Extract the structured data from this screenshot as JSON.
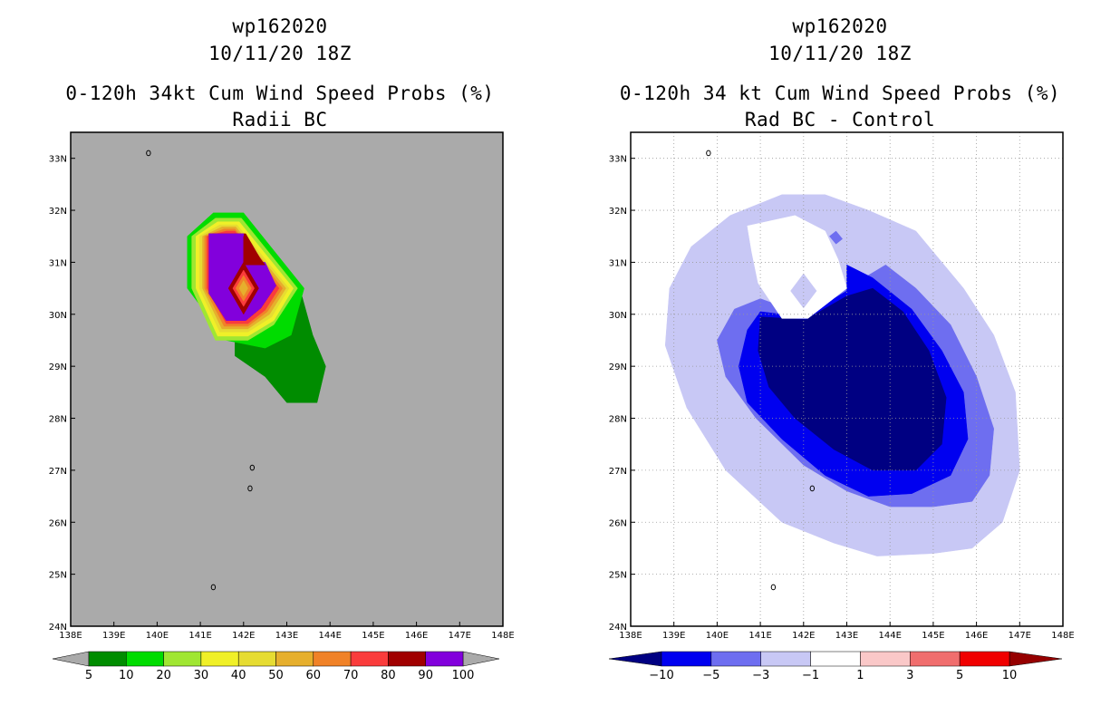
{
  "chart_data": [
    {
      "type": "filled-contour-map",
      "storm_id": "wp162020",
      "datetime": "10/11/20 18Z",
      "title": "0-120h 34kt Cum Wind Speed Probs (%)",
      "subtitle": "Radii BC",
      "x_ticks": [
        "138E",
        "139E",
        "140E",
        "141E",
        "142E",
        "143E",
        "144E",
        "145E",
        "146E",
        "147E",
        "148E"
      ],
      "y_ticks": [
        "24N",
        "25N",
        "26N",
        "27N",
        "28N",
        "29N",
        "30N",
        "31N",
        "32N",
        "33N"
      ],
      "xlim": [
        138,
        148
      ],
      "ylim": [
        24,
        33.5
      ],
      "background_color": "#aaaaaa",
      "grid": false,
      "colorbar": {
        "labels": [
          "5",
          "10",
          "20",
          "30",
          "40",
          "50",
          "60",
          "70",
          "80",
          "90",
          "100"
        ],
        "colors": [
          "#008c00",
          "#00dc00",
          "#a0e632",
          "#f0f028",
          "#e6dc32",
          "#e6af2d",
          "#f08228",
          "#fa3c3c",
          "#a00000",
          "#8200dc"
        ]
      },
      "regions": [
        {
          "level": "5-10",
          "color": "#008c00",
          "points": [
            [
              141.8,
              30.3
            ],
            [
              143.3,
              30.5
            ],
            [
              143.6,
              29.6
            ],
            [
              143.9,
              29.0
            ],
            [
              143.7,
              28.3
            ],
            [
              143.0,
              28.3
            ],
            [
              142.5,
              28.8
            ],
            [
              141.8,
              29.2
            ]
          ]
        },
        {
          "level": "10-20",
          "color": "#00dc00",
          "points": [
            [
              140.7,
              31.5
            ],
            [
              141.3,
              31.95
            ],
            [
              142.0,
              31.95
            ],
            [
              143.4,
              30.5
            ],
            [
              143.1,
              29.6
            ],
            [
              142.5,
              29.35
            ],
            [
              141.6,
              29.5
            ],
            [
              140.7,
              30.5
            ]
          ]
        },
        {
          "level": "20-30",
          "color": "#a0e632",
          "points": [
            [
              140.8,
              31.5
            ],
            [
              141.35,
              31.85
            ],
            [
              141.95,
              31.85
            ],
            [
              143.25,
              30.5
            ],
            [
              142.7,
              29.8
            ],
            [
              142.1,
              29.5
            ],
            [
              141.35,
              29.5
            ],
            [
              140.8,
              30.5
            ]
          ]
        },
        {
          "level": "30-40",
          "color": "#f0f028",
          "points": [
            [
              140.9,
              31.5
            ],
            [
              141.4,
              31.78
            ],
            [
              141.9,
              31.78
            ],
            [
              143.15,
              30.5
            ],
            [
              142.7,
              29.88
            ],
            [
              142.1,
              29.58
            ],
            [
              141.4,
              29.58
            ],
            [
              140.9,
              30.5
            ]
          ]
        },
        {
          "level": "40-50",
          "color": "#e6dc32",
          "points": [
            [
              140.98,
              31.5
            ],
            [
              141.45,
              31.72
            ],
            [
              141.85,
              31.72
            ],
            [
              143.05,
              30.5
            ],
            [
              142.65,
              29.95
            ],
            [
              142.1,
              29.66
            ],
            [
              141.45,
              29.66
            ],
            [
              140.98,
              30.5
            ]
          ]
        },
        {
          "level": "50-60",
          "color": "#e6af2d",
          "points": [
            [
              141.05,
              31.5
            ],
            [
              141.5,
              31.68
            ],
            [
              141.82,
              31.68
            ],
            [
              142.98,
              30.5
            ],
            [
              142.6,
              30.0
            ],
            [
              142.1,
              29.72
            ],
            [
              141.5,
              29.72
            ],
            [
              141.05,
              30.5
            ]
          ]
        },
        {
          "level": "60-70",
          "color": "#f08228",
          "points": [
            [
              141.1,
              31.5
            ],
            [
              141.55,
              31.64
            ],
            [
              141.8,
              31.64
            ],
            [
              142.9,
              30.5
            ],
            [
              142.55,
              30.05
            ],
            [
              142.1,
              29.77
            ],
            [
              141.55,
              29.77
            ],
            [
              141.1,
              30.5
            ]
          ]
        },
        {
          "level": "70-80",
          "color": "#fa3c3c",
          "points": [
            [
              141.15,
              31.5
            ],
            [
              141.6,
              31.6
            ],
            [
              141.8,
              31.6
            ],
            [
              142.82,
              30.5
            ],
            [
              142.5,
              30.08
            ],
            [
              142.1,
              29.82
            ],
            [
              141.6,
              29.82
            ],
            [
              141.15,
              30.5
            ]
          ]
        },
        {
          "level": "80-90",
          "color": "#a00000",
          "points": [
            [
              141.2,
              31.55
            ],
            [
              142.05,
              31.55
            ],
            [
              142.75,
              30.55
            ],
            [
              142.4,
              30.12
            ],
            [
              142.05,
              29.88
            ],
            [
              141.6,
              29.88
            ],
            [
              141.2,
              30.4
            ]
          ]
        },
        {
          "level": "90-100",
          "color": "#8200dc",
          "points": [
            [
              141.2,
              31.55
            ],
            [
              142.0,
              31.55
            ],
            [
              142.0,
              31.0
            ],
            [
              142.5,
              31.0
            ],
            [
              142.75,
              30.55
            ],
            [
              142.4,
              30.12
            ],
            [
              142.05,
              29.88
            ],
            [
              141.6,
              29.88
            ],
            [
              141.2,
              30.4
            ]
          ]
        },
        {
          "level": "80-90",
          "color": "#a00000",
          "points": [
            [
              142.0,
              31.5
            ],
            [
              142.0,
              30.95
            ],
            [
              142.5,
              30.95
            ]
          ]
        },
        {
          "level": "80-90",
          "color": "#a00000",
          "points": [
            [
              142.0,
              31.0
            ],
            [
              142.35,
              30.5
            ],
            [
              142.0,
              30.0
            ],
            [
              141.65,
              30.5
            ]
          ]
        },
        {
          "level": "70-80",
          "color": "#fa3c3c",
          "points": [
            [
              142.0,
              30.85
            ],
            [
              142.25,
              30.5
            ],
            [
              142.0,
              30.15
            ],
            [
              141.75,
              30.5
            ]
          ]
        },
        {
          "level": "60-70",
          "color": "#f08228",
          "points": [
            [
              142.0,
              30.75
            ],
            [
              142.18,
              30.5
            ],
            [
              142.0,
              30.25
            ],
            [
              141.82,
              30.5
            ]
          ]
        },
        {
          "level": "50-60",
          "color": "#e6af2d",
          "points": [
            [
              142.0,
              30.65
            ],
            [
              142.1,
              30.5
            ],
            [
              142.0,
              30.35
            ],
            [
              141.9,
              30.5
            ]
          ]
        }
      ],
      "islands": [
        [
          139.8,
          33.1
        ],
        [
          142.2,
          27.05
        ],
        [
          142.15,
          26.65
        ],
        [
          141.3,
          24.75
        ]
      ]
    },
    {
      "type": "filled-contour-map",
      "storm_id": "wp162020",
      "datetime": "10/11/20 18Z",
      "title": "0-120h 34 kt Cum Wind Speed Probs (%)",
      "subtitle": "Rad BC - Control",
      "x_ticks": [
        "138E",
        "139E",
        "140E",
        "141E",
        "142E",
        "143E",
        "144E",
        "145E",
        "146E",
        "147E",
        "148E"
      ],
      "y_ticks": [
        "24N",
        "25N",
        "26N",
        "27N",
        "28N",
        "29N",
        "30N",
        "31N",
        "32N",
        "33N"
      ],
      "xlim": [
        138,
        148
      ],
      "ylim": [
        24,
        33.5
      ],
      "background_color": "#ffffff",
      "grid": true,
      "colorbar": {
        "labels": [
          "-10",
          "-5",
          "-3",
          "-1",
          "1",
          "3",
          "5",
          "10"
        ],
        "colors": [
          "#000082",
          "#0000f0",
          "#6e6ef0",
          "#c8c8f5",
          "#ffffff",
          "#fac8c8",
          "#f06e6e",
          "#f00000",
          "#960000"
        ]
      },
      "regions": [
        {
          "level": "-3 to -1",
          "color": "#c8c8f5",
          "points": [
            [
              140.3,
              31.9
            ],
            [
              141.5,
              32.3
            ],
            [
              142.5,
              32.3
            ],
            [
              143.5,
              32.0
            ],
            [
              144.6,
              31.6
            ],
            [
              145.7,
              30.5
            ],
            [
              146.4,
              29.6
            ],
            [
              146.9,
              28.5
            ],
            [
              147.0,
              27.0
            ],
            [
              146.6,
              26.0
            ],
            [
              145.9,
              25.5
            ],
            [
              145.0,
              25.4
            ],
            [
              143.7,
              25.35
            ],
            [
              142.7,
              25.6
            ],
            [
              141.5,
              26.0
            ],
            [
              140.2,
              27.0
            ],
            [
              139.3,
              28.2
            ],
            [
              138.8,
              29.4
            ],
            [
              138.9,
              30.5
            ],
            [
              139.4,
              31.3
            ]
          ]
        },
        {
          "level": "-5 to -3",
          "color": "#6e6ef0",
          "points": [
            [
              141.0,
              30.3
            ],
            [
              142.0,
              30.0
            ],
            [
              143.0,
              30.5
            ],
            [
              143.9,
              30.95
            ],
            [
              144.6,
              30.5
            ],
            [
              145.4,
              29.8
            ],
            [
              146.0,
              28.8
            ],
            [
              146.4,
              27.8
            ],
            [
              146.3,
              26.9
            ],
            [
              145.9,
              26.4
            ],
            [
              145.0,
              26.3
            ],
            [
              144.0,
              26.3
            ],
            [
              143.0,
              26.6
            ],
            [
              142.0,
              27.1
            ],
            [
              140.9,
              28.0
            ],
            [
              140.2,
              28.8
            ],
            [
              140.0,
              29.5
            ],
            [
              140.4,
              30.1
            ]
          ]
        },
        {
          "level": "-10 to -5",
          "color": "#0000f0",
          "points": [
            [
              141.0,
              30.05
            ],
            [
              142.0,
              29.95
            ],
            [
              143.0,
              30.45
            ],
            [
              143.0,
              30.95
            ],
            [
              143.6,
              30.7
            ],
            [
              144.5,
              30.1
            ],
            [
              145.2,
              29.3
            ],
            [
              145.7,
              28.5
            ],
            [
              145.8,
              27.6
            ],
            [
              145.4,
              26.9
            ],
            [
              144.5,
              26.55
            ],
            [
              143.5,
              26.5
            ],
            [
              142.5,
              26.9
            ],
            [
              141.5,
              27.6
            ],
            [
              140.7,
              28.3
            ],
            [
              140.5,
              29.0
            ],
            [
              140.7,
              29.7
            ]
          ]
        },
        {
          "level": "< -10",
          "color": "#000082",
          "points": [
            [
              141.0,
              29.95
            ],
            [
              142.05,
              29.9
            ],
            [
              143.0,
              30.35
            ],
            [
              143.6,
              30.5
            ],
            [
              144.3,
              30.05
            ],
            [
              144.9,
              29.3
            ],
            [
              145.3,
              28.4
            ],
            [
              145.2,
              27.5
            ],
            [
              144.6,
              27.0
            ],
            [
              143.6,
              27.0
            ],
            [
              142.7,
              27.4
            ],
            [
              141.8,
              28.0
            ],
            [
              141.2,
              28.6
            ],
            [
              140.95,
              29.3
            ]
          ]
        },
        {
          "level": "-1 to 1",
          "color": "#ffffff",
          "points": [
            [
              140.7,
              31.7
            ],
            [
              141.8,
              31.9
            ],
            [
              142.5,
              31.6
            ],
            [
              142.8,
              31.05
            ],
            [
              143.0,
              30.5
            ],
            [
              142.1,
              29.92
            ],
            [
              141.5,
              29.92
            ],
            [
              140.95,
              30.6
            ],
            [
              140.8,
              31.2
            ]
          ]
        },
        {
          "level": "-3 to -1",
          "color": "#c8c8f5",
          "points": [
            [
              142.0,
              30.78
            ],
            [
              142.3,
              30.45
            ],
            [
              142.0,
              30.12
            ],
            [
              141.7,
              30.45
            ]
          ]
        },
        {
          "level": "-3 to -1",
          "color": "#c8c8f5",
          "points": [
            [
              143.0,
              31.5
            ],
            [
              143.5,
              31.6
            ],
            [
              144.0,
              31.5
            ],
            [
              143.7,
              31.4
            ],
            [
              143.2,
              31.35
            ]
          ]
        },
        {
          "level": "-5 to -3",
          "color": "#6e6ef0",
          "points": [
            [
              142.6,
              31.5
            ],
            [
              142.75,
              31.35
            ],
            [
              142.9,
              31.45
            ],
            [
              142.75,
              31.6
            ]
          ]
        }
      ],
      "islands": [
        [
          139.8,
          33.1
        ],
        [
          142.2,
          26.65
        ],
        [
          141.3,
          24.75
        ]
      ]
    }
  ]
}
